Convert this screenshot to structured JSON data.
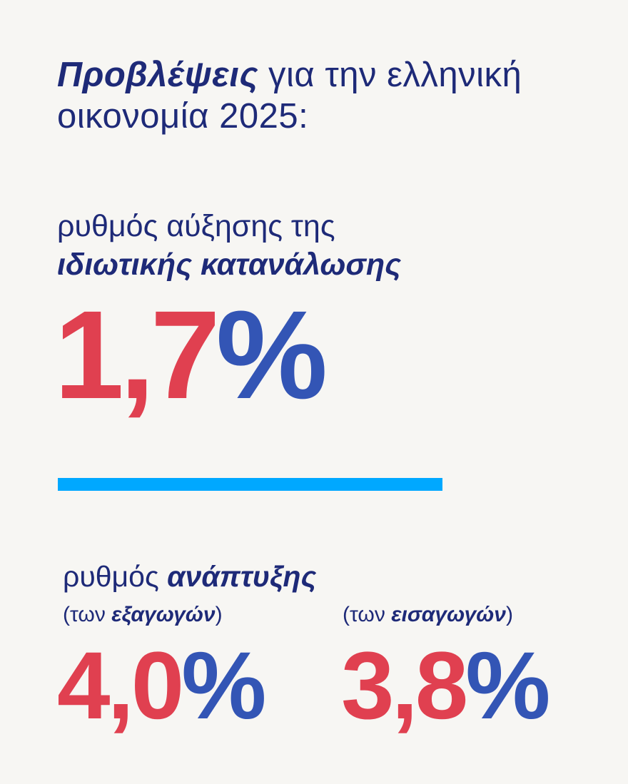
{
  "title": {
    "bold": "Προβλέψεις",
    "rest_line1": " για την ελληνική",
    "line2": "οικονομία 2025:"
  },
  "consumption": {
    "label_line1": "ρυθμός αύξησης της",
    "label_line2": "ιδιωτικής κατανάλωσης",
    "value": "1,7",
    "unit": "%"
  },
  "growth": {
    "label_prefix": "ρυθμός ",
    "label_bold": "ανάπτυξης",
    "exports": {
      "open": "(των ",
      "bold": "εξαγωγών",
      "close": ")",
      "value": "4,0",
      "unit": "%"
    },
    "imports": {
      "open": "(των ",
      "bold": "εισαγωγών",
      "close": ")",
      "value": "3,8",
      "unit": "%"
    }
  },
  "colors": {
    "background": "#f7f6f3",
    "text": "#1e2a78",
    "number": "#e04050",
    "percent": "#3355b5",
    "divider": "#00a8ff"
  }
}
